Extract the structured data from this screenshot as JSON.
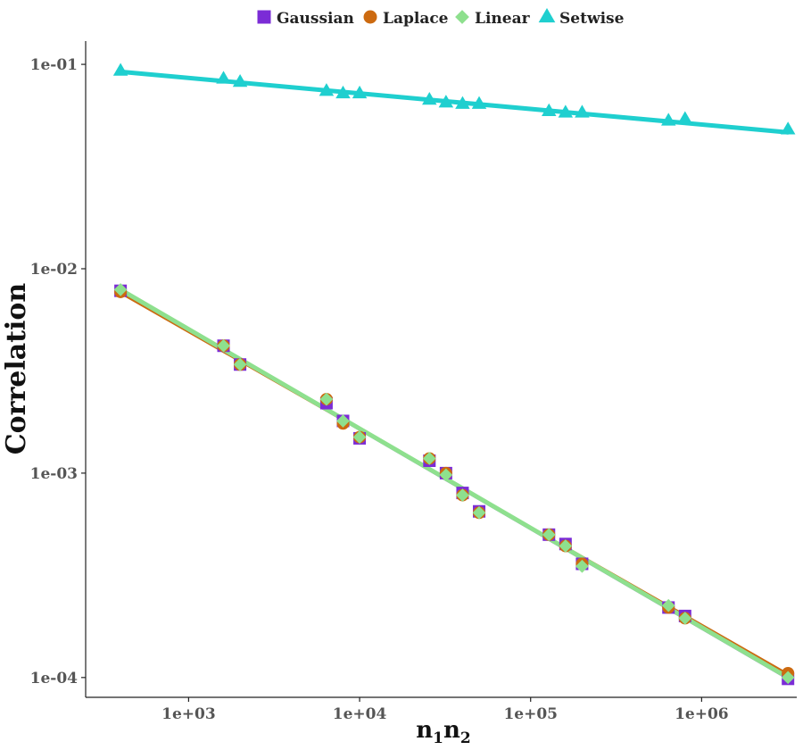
{
  "chart_data": {
    "type": "scatter",
    "title": "",
    "xlabel": "n1n2",
    "xlabel_parts": {
      "n": "n",
      "sub1": "1",
      "sub2": "2"
    },
    "ylabel": "Correlation",
    "xscale": "log",
    "yscale": "log",
    "xlim": [
      250,
      3600000
    ],
    "ylim": [
      8e-05,
      0.13
    ],
    "x_ticks": [
      1000,
      10000,
      100000,
      1000000
    ],
    "x_tick_labels": [
      "1e+03",
      "1e+04",
      "1e+05",
      "1e+06"
    ],
    "y_ticks": [
      0.0001,
      0.001,
      0.01,
      0.1
    ],
    "y_tick_labels": [
      "1e-04",
      "1e-03",
      "1e-02",
      "1e-01"
    ],
    "grid": false,
    "legend_position": "top",
    "x": [
      400,
      1600,
      2000,
      6400,
      8000,
      10000,
      25600,
      32000,
      40000,
      50000,
      128000,
      160000,
      200000,
      640000,
      800000,
      3200000
    ],
    "series": [
      {
        "name": "Gaussian",
        "color": "#7B2CD6",
        "marker": "square",
        "values": [
          0.0078,
          0.0042,
          0.0034,
          0.0022,
          0.0018,
          0.00148,
          0.00115,
          0.001,
          0.0008,
          0.00065,
          0.0005,
          0.00045,
          0.00036,
          0.00022,
          0.0002,
          9.85e-05
        ],
        "fit": [
          0.0078,
          9.85e-05
        ]
      },
      {
        "name": "Laplace",
        "color": "#CC6A10",
        "marker": "circle",
        "values": [
          0.0077,
          0.0042,
          0.0034,
          0.0023,
          0.00175,
          0.0015,
          0.00118,
          0.001,
          0.00078,
          0.00064,
          0.0005,
          0.00044,
          0.00036,
          0.00022,
          0.000195,
          0.000105
        ],
        "fit": [
          0.0076,
          0.000104
        ]
      },
      {
        "name": "Linear",
        "color": "#8EE08E",
        "marker": "diamond",
        "values": [
          0.0079,
          0.0042,
          0.0034,
          0.0023,
          0.0018,
          0.0015,
          0.00118,
          0.00098,
          0.00078,
          0.00064,
          0.0005,
          0.00044,
          0.00035,
          0.000225,
          0.000195,
          0.0001
        ],
        "fit": [
          0.0079,
          0.0001
        ]
      },
      {
        "name": "Setwise",
        "color": "#1FCFCF",
        "marker": "triangle",
        "values": [
          0.093,
          0.085,
          0.082,
          0.074,
          0.072,
          0.072,
          0.067,
          0.065,
          0.064,
          0.064,
          0.059,
          0.058,
          0.058,
          0.053,
          0.054,
          0.048
        ],
        "fit": [
          0.092,
          0.0465
        ]
      }
    ]
  }
}
